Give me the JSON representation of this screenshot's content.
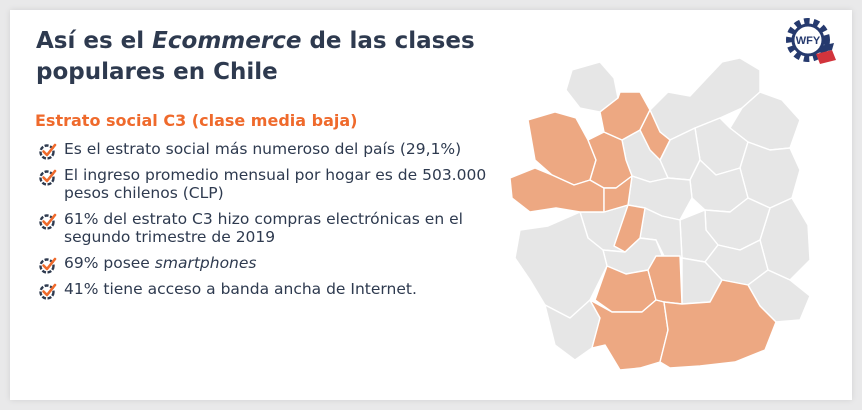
{
  "title": {
    "part1": "Así es el ",
    "emphasis": "Ecommerce",
    "part2": " de las clases populares en Chile"
  },
  "subtitle": "Estrato social C3 (clase media baja)",
  "bullets": [
    {
      "text": "Es el estrato social más numeroso del país (29,1%)"
    },
    {
      "text": "El ingreso promedio mensual por hogar es de 503.000 pesos chilenos (CLP)"
    },
    {
      "text": "61% del estrato C3 hizo compras electrónicas en el segundo trimestre de 2019"
    },
    {
      "prefix": "69% posee ",
      "emphasis": "smartphones"
    },
    {
      "text": "41% tiene acceso a banda ancha de Internet."
    }
  ],
  "logo": {
    "text": "WFY",
    "icon": "gear-logo"
  },
  "colors": {
    "title": "#2e3a4f",
    "accent": "#ef6a2c",
    "map_highlight": "#eda882",
    "map_base": "#e6e6e6",
    "logo_navy": "#263a6e",
    "logo_red": "#d2343c"
  }
}
